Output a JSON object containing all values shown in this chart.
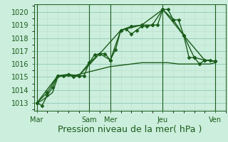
{
  "background_color": "#cceedd",
  "grid_color_major": "#99ccbb",
  "grid_color_minor": "#bbddcc",
  "line_color": "#1a5c1a",
  "ylim": [
    1012.4,
    1020.6
  ],
  "yticks": [
    1013,
    1014,
    1015,
    1016,
    1017,
    1018,
    1019,
    1020
  ],
  "xlabel": "Pression niveau de la mer( hPa )",
  "xlabel_fontsize": 9,
  "tick_fontsize": 7,
  "day_labels": [
    "Mar",
    "Sam",
    "Mer",
    "Jeu",
    "Ven"
  ],
  "day_positions": [
    0,
    60,
    84,
    144,
    204
  ],
  "xlim": [
    -3,
    216
  ],
  "series": [
    {
      "x": [
        0,
        6,
        12,
        18,
        24,
        30,
        36,
        42,
        48,
        54,
        60,
        66,
        72,
        78,
        84,
        90,
        96,
        102,
        108,
        114,
        120,
        126,
        132,
        138,
        144,
        150,
        156,
        162,
        168,
        174,
        180,
        186,
        192,
        198,
        204
      ],
      "y": [
        1013.0,
        1012.8,
        1013.6,
        1014.2,
        1015.1,
        1015.1,
        1015.2,
        1015.0,
        1015.1,
        1015.1,
        1016.1,
        1016.7,
        1016.8,
        1016.8,
        1016.3,
        1017.1,
        1018.6,
        1018.7,
        1018.3,
        1018.6,
        1018.9,
        1018.9,
        1019.0,
        1019.0,
        1020.2,
        1020.2,
        1019.4,
        1019.4,
        1018.2,
        1016.5,
        1016.5,
        1016.0,
        1016.3,
        1016.3,
        1016.2
      ],
      "marker": "D",
      "markersize": 2.5,
      "linewidth": 1.0
    },
    {
      "x": [
        0,
        12,
        24,
        36,
        48,
        60,
        72,
        84,
        96,
        108,
        120,
        132,
        144,
        156,
        168,
        180,
        192,
        204
      ],
      "y": [
        1013.0,
        1013.8,
        1015.1,
        1015.2,
        1015.1,
        1016.1,
        1016.8,
        1016.3,
        1018.6,
        1018.9,
        1019.0,
        1019.0,
        1020.2,
        1019.4,
        1018.2,
        1016.5,
        1016.3,
        1016.2
      ],
      "marker": "D",
      "markersize": 2.5,
      "linewidth": 1.0
    },
    {
      "x": [
        0,
        24,
        48,
        72,
        96,
        120,
        144,
        168,
        192,
        204
      ],
      "y": [
        1013.0,
        1015.1,
        1015.1,
        1016.8,
        1018.6,
        1019.0,
        1020.2,
        1018.2,
        1016.3,
        1016.2
      ],
      "marker": null,
      "markersize": 0,
      "linewidth": 1.0
    },
    {
      "x": [
        0,
        6,
        12,
        18,
        24,
        30,
        36,
        42,
        48,
        54,
        60,
        66,
        72,
        78,
        84,
        90,
        96,
        102,
        108,
        114,
        120,
        126,
        132,
        138,
        144,
        150,
        156,
        162,
        168,
        174,
        180,
        186,
        192,
        198,
        204
      ],
      "y": [
        1013.0,
        1013.2,
        1013.5,
        1013.8,
        1015.0,
        1015.1,
        1015.1,
        1015.1,
        1015.2,
        1015.3,
        1015.4,
        1015.5,
        1015.6,
        1015.7,
        1015.8,
        1015.85,
        1015.9,
        1015.95,
        1016.0,
        1016.05,
        1016.1,
        1016.1,
        1016.1,
        1016.1,
        1016.1,
        1016.1,
        1016.05,
        1016.0,
        1016.0,
        1016.0,
        1016.0,
        1016.0,
        1016.0,
        1016.0,
        1016.1
      ],
      "marker": null,
      "markersize": 0,
      "linewidth": 1.0
    }
  ]
}
